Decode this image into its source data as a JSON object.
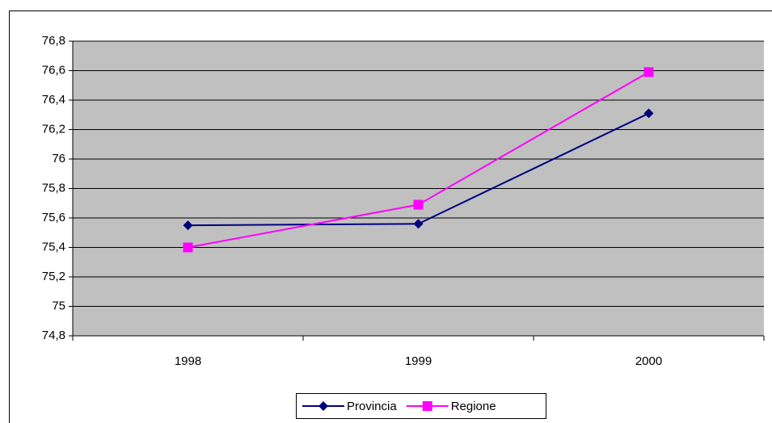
{
  "chart_data": {
    "type": "line",
    "categories": [
      "1998",
      "1999",
      "2000"
    ],
    "series": [
      {
        "name": "Provincia",
        "color": "#000080",
        "marker": "diamond",
        "values": [
          75.55,
          75.56,
          76.31
        ]
      },
      {
        "name": "Regione",
        "color": "#ff00ff",
        "marker": "square",
        "values": [
          75.4,
          75.69,
          76.59
        ]
      }
    ],
    "ylim": [
      74.8,
      76.8
    ],
    "yticks": [
      {
        "value": 74.8,
        "label": "74,8"
      },
      75,
      {
        "value": 75.2,
        "label": "75,2"
      },
      {
        "value": 75.4,
        "label": "75,4"
      },
      {
        "value": 75.6,
        "label": "75,6"
      },
      {
        "value": 75.8,
        "label": "75,8"
      },
      76,
      {
        "value": 76.2,
        "label": "76,2"
      },
      {
        "value": 76.4,
        "label": "76,4"
      },
      {
        "value": 76.6,
        "label": "76,6"
      },
      {
        "value": 76.8,
        "label": "76,8"
      }
    ],
    "grid": true,
    "plot_background": "#c0c0c0",
    "legend": "bottom"
  }
}
